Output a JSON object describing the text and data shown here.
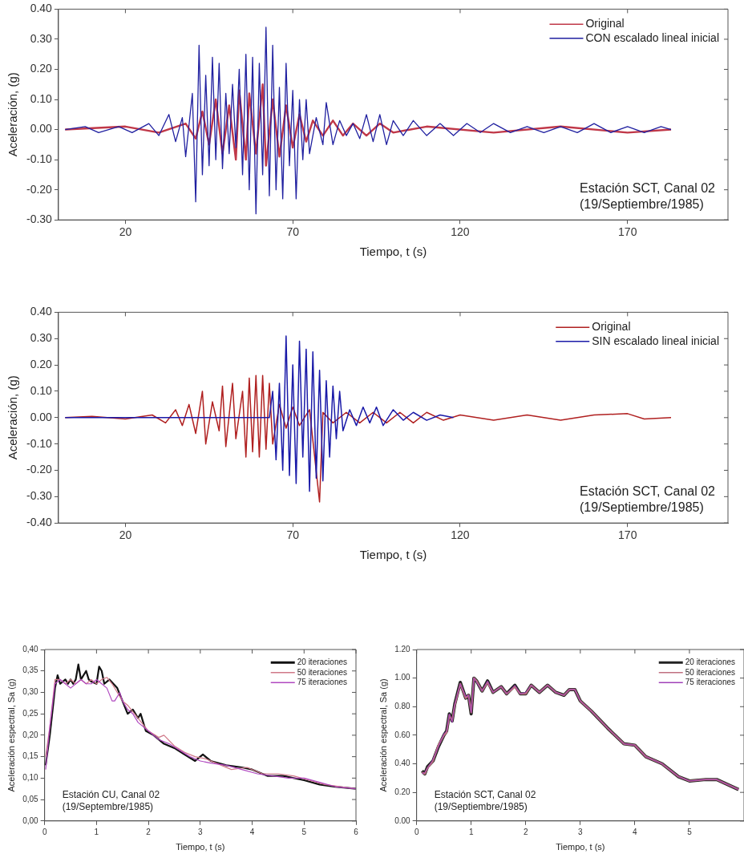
{
  "chart_data": [
    {
      "type": "line",
      "xlabel": "Tiempo, t (s)",
      "ylabel": "Aceleración, (g)",
      "xlim": [
        0,
        200
      ],
      "xticks": [
        20,
        70,
        120,
        170
      ],
      "ylim": [
        -0.3,
        0.4
      ],
      "yticks": [
        {
          "value": -0.3,
          "label": "-0.30"
        },
        {
          "value": -0.2,
          "label": "-0.20"
        },
        {
          "value": -0.1,
          "label": "-0.10"
        },
        {
          "value": 0,
          "label": "0.00"
        },
        {
          "value": 0.1,
          "label": "0.10"
        },
        {
          "value": 0.2,
          "label": "0.20"
        },
        {
          "value": 0.3,
          "label": "0.30"
        },
        {
          "value": 0.4,
          "label": "0.40"
        }
      ],
      "legend": "top right",
      "annotations": [
        "Estación SCT, Canal 02",
        "(19/Septiembre/1985)"
      ],
      "series": [
        {
          "name": "Original",
          "color": "#c03848",
          "x": [
            2,
            20,
            30,
            38,
            41,
            43,
            45,
            47,
            49,
            51,
            53,
            54,
            56,
            57,
            59,
            61,
            62,
            64,
            66,
            68,
            70,
            72,
            74,
            76,
            79,
            82,
            85,
            88,
            92,
            96,
            100,
            110,
            130,
            150,
            170,
            183
          ],
          "values": [
            0,
            0.01,
            -0.01,
            0.02,
            -0.03,
            0.06,
            -0.05,
            0.1,
            -0.08,
            0.08,
            -0.1,
            0.13,
            -0.1,
            0.12,
            -0.08,
            0.15,
            -0.12,
            0.1,
            -0.09,
            0.08,
            -0.06,
            0.05,
            -0.04,
            0.03,
            -0.02,
            0.03,
            -0.02,
            0.02,
            -0.02,
            0.02,
            -0.01,
            0.01,
            -0.01,
            0.01,
            -0.01,
            0
          ]
        },
        {
          "name": "CON escalado lineal inicial",
          "color": "#2020a0",
          "x": [
            2,
            8,
            12,
            18,
            22,
            27,
            30,
            33,
            35,
            37,
            38,
            40,
            41,
            42,
            43,
            44,
            45,
            46,
            47,
            48,
            49,
            50,
            51,
            52,
            53,
            54,
            55,
            56,
            57,
            58,
            59,
            60,
            61,
            62,
            63,
            64,
            65,
            66,
            67,
            68,
            69,
            70,
            71,
            72,
            73,
            74,
            75,
            77,
            79,
            80,
            82,
            84,
            86,
            88,
            90,
            92,
            94,
            96,
            98,
            100,
            103,
            106,
            110,
            114,
            118,
            122,
            126,
            130,
            135,
            140,
            145,
            150,
            155,
            160,
            165,
            170,
            175,
            180,
            183
          ],
          "values": [
            0,
            0.01,
            -0.01,
            0.01,
            -0.01,
            0.02,
            -0.02,
            0.05,
            -0.04,
            0.04,
            -0.09,
            0.12,
            -0.24,
            0.28,
            -0.15,
            0.18,
            -0.12,
            0.24,
            -0.1,
            0.22,
            -0.13,
            0.12,
            -0.08,
            0.15,
            -0.06,
            0.2,
            -0.15,
            0.25,
            -0.2,
            0.24,
            -0.28,
            0.22,
            -0.15,
            0.34,
            -0.22,
            0.28,
            -0.2,
            0.14,
            -0.23,
            0.22,
            -0.12,
            0.13,
            -0.23,
            0.1,
            -0.1,
            0.1,
            -0.08,
            0.04,
            -0.05,
            0.09,
            -0.05,
            0.03,
            -0.02,
            0.02,
            -0.03,
            0.05,
            -0.04,
            0.05,
            -0.05,
            0.03,
            -0.02,
            0.03,
            -0.02,
            0.02,
            -0.02,
            0.02,
            -0.01,
            0.02,
            -0.01,
            0.01,
            -0.01,
            0.01,
            -0.01,
            0.02,
            -0.01,
            0.01,
            -0.01,
            0.01,
            0
          ]
        }
      ]
    },
    {
      "type": "line",
      "xlabel": "Tiempo, t (s)",
      "ylabel": "Aceleración, (g)",
      "xlim": [
        0,
        200
      ],
      "xticks": [
        20,
        70,
        120,
        170
      ],
      "ylim": [
        -0.4,
        0.4
      ],
      "yticks": [
        {
          "value": -0.4,
          "label": "-0.40"
        },
        {
          "value": -0.3,
          "label": "-0.30"
        },
        {
          "value": -0.2,
          "label": "-0.20"
        },
        {
          "value": -0.1,
          "label": "-0.10"
        },
        {
          "value": 0,
          "label": "0.00"
        },
        {
          "value": 0.1,
          "label": "0.10"
        },
        {
          "value": 0.2,
          "label": "0.20"
        },
        {
          "value": 0.3,
          "label": "0.30"
        },
        {
          "value": 0.4,
          "label": "0.40"
        }
      ],
      "legend": "top right",
      "annotations": [
        "Estación SCT, Canal 02",
        "(19/Septiembre/1985)"
      ],
      "series": [
        {
          "name": "Original",
          "color": "#b02020",
          "x": [
            2,
            10,
            20,
            28,
            32,
            35,
            37,
            39,
            41,
            43,
            44,
            46,
            48,
            49,
            50,
            52,
            53,
            55,
            56,
            57,
            58,
            59,
            60,
            61,
            62,
            63,
            64,
            66,
            68,
            70,
            72,
            75,
            78,
            79,
            82,
            86,
            90,
            94,
            98,
            102,
            106,
            110,
            115,
            120,
            130,
            140,
            150,
            160,
            170,
            175,
            183
          ],
          "values": [
            0,
            0.005,
            -0.005,
            0.01,
            -0.02,
            0.03,
            -0.03,
            0.05,
            -0.06,
            0.1,
            -0.1,
            0.06,
            -0.05,
            0.12,
            -0.11,
            0.13,
            -0.08,
            0.1,
            -0.15,
            0.15,
            -0.13,
            0.16,
            -0.15,
            0.16,
            -0.12,
            0.13,
            -0.1,
            0.05,
            -0.04,
            0.04,
            -0.03,
            0.03,
            -0.32,
            0.02,
            -0.02,
            0.02,
            -0.02,
            0.02,
            -0.02,
            0.02,
            -0.02,
            0.02,
            -0.01,
            0.01,
            -0.01,
            0.01,
            -0.01,
            0.01,
            0.015,
            -0.005,
            0
          ]
        },
        {
          "name": "SIN escalado lineal inicial",
          "color": "#1a1aa8",
          "x": [
            2,
            63,
            64,
            65,
            66,
            67,
            68,
            69,
            70,
            71,
            72,
            73,
            74,
            75,
            76,
            77,
            78,
            79,
            80,
            81,
            82,
            83,
            84,
            85,
            87,
            89,
            91,
            93,
            95,
            97,
            100,
            103,
            106,
            110,
            114,
            118
          ],
          "values": [
            0,
            0,
            0.1,
            -0.16,
            0.13,
            -0.2,
            0.31,
            -0.22,
            0.2,
            -0.25,
            0.29,
            -0.15,
            0.26,
            -0.28,
            0.25,
            -0.23,
            0.18,
            -0.24,
            0.14,
            -0.15,
            0.12,
            -0.08,
            0.1,
            -0.05,
            0.03,
            -0.03,
            0.04,
            -0.02,
            0.04,
            -0.03,
            0.03,
            -0.01,
            0.02,
            -0.01,
            0.01,
            0
          ]
        }
      ]
    },
    {
      "type": "line",
      "xlabel": "Tiempo, t (s)",
      "ylabel": "Aceleración espectral, Sa (g)",
      "xlim": [
        0,
        6
      ],
      "xticks": [
        0,
        1,
        2,
        3,
        4,
        5,
        6
      ],
      "ylim": [
        0,
        0.4
      ],
      "yticks": [
        {
          "value": 0,
          "label": "0,00"
        },
        {
          "value": 0.05,
          "label": "0,05"
        },
        {
          "value": 0.1,
          "label": "0,10"
        },
        {
          "value": 0.15,
          "label": "0,15"
        },
        {
          "value": 0.2,
          "label": "0,20"
        },
        {
          "value": 0.25,
          "label": "0,25"
        },
        {
          "value": 0.3,
          "label": "0,30"
        },
        {
          "value": 0.35,
          "label": "0,35"
        },
        {
          "value": 0.4,
          "label": "0,40"
        }
      ],
      "legend": "top right",
      "annotations": [
        "Estación CU, Canal 02",
        "(19/Septembre/1985)"
      ],
      "series": [
        {
          "name": "20 iteraciones",
          "color": "#111111",
          "x": [
            0.02,
            0.1,
            0.2,
            0.25,
            0.3,
            0.4,
            0.45,
            0.5,
            0.55,
            0.6,
            0.65,
            0.7,
            0.8,
            0.85,
            0.9,
            1.0,
            1.05,
            1.1,
            1.15,
            1.25,
            1.4,
            1.5,
            1.6,
            1.7,
            1.8,
            1.85,
            1.95,
            2.1,
            2.3,
            2.5,
            2.7,
            2.9,
            3.05,
            3.2,
            3.5,
            3.8,
            4.0,
            4.3,
            4.6,
            5.0,
            5.3,
            5.6,
            6.0
          ],
          "values": [
            0.13,
            0.2,
            0.31,
            0.34,
            0.32,
            0.33,
            0.32,
            0.33,
            0.32,
            0.33,
            0.365,
            0.33,
            0.35,
            0.33,
            0.325,
            0.32,
            0.36,
            0.35,
            0.32,
            0.33,
            0.31,
            0.28,
            0.25,
            0.26,
            0.24,
            0.25,
            0.21,
            0.2,
            0.18,
            0.17,
            0.155,
            0.14,
            0.155,
            0.14,
            0.13,
            0.125,
            0.12,
            0.105,
            0.105,
            0.095,
            0.085,
            0.08,
            0.075
          ]
        },
        {
          "name": "50 iteraciones",
          "color": "#d07888",
          "x": [
            0.02,
            0.1,
            0.2,
            0.3,
            0.4,
            0.5,
            0.6,
            0.7,
            0.8,
            0.9,
            1.0,
            1.1,
            1.2,
            1.3,
            1.4,
            1.5,
            1.6,
            1.7,
            1.8,
            2.0,
            2.2,
            2.3,
            2.5,
            2.7,
            2.9,
            3.1,
            3.3,
            3.6,
            3.9,
            4.2,
            4.5,
            4.8,
            5.1,
            5.4,
            5.7,
            6.0
          ],
          "values": [
            0.15,
            0.22,
            0.33,
            0.33,
            0.32,
            0.33,
            0.32,
            0.33,
            0.32,
            0.33,
            0.32,
            0.33,
            0.335,
            0.32,
            0.3,
            0.28,
            0.27,
            0.255,
            0.24,
            0.21,
            0.195,
            0.2,
            0.175,
            0.16,
            0.15,
            0.145,
            0.135,
            0.12,
            0.125,
            0.11,
            0.11,
            0.105,
            0.095,
            0.085,
            0.08,
            0.075
          ]
        },
        {
          "name": "75 iteraciones",
          "color": "#b048c0",
          "x": [
            0.02,
            0.1,
            0.2,
            0.3,
            0.4,
            0.5,
            0.6,
            0.7,
            0.8,
            0.9,
            1.0,
            1.1,
            1.2,
            1.3,
            1.35,
            1.45,
            1.5,
            1.6,
            1.7,
            1.8,
            2.0,
            2.2,
            2.4,
            2.6,
            2.8,
            3.0,
            3.2,
            3.5,
            3.8,
            4.1,
            4.4,
            4.7,
            5.0,
            5.3,
            5.6,
            6.0
          ],
          "values": [
            0.12,
            0.22,
            0.32,
            0.33,
            0.32,
            0.31,
            0.32,
            0.33,
            0.32,
            0.32,
            0.33,
            0.32,
            0.31,
            0.28,
            0.28,
            0.3,
            0.28,
            0.26,
            0.25,
            0.23,
            0.21,
            0.19,
            0.18,
            0.165,
            0.15,
            0.14,
            0.135,
            0.13,
            0.12,
            0.11,
            0.105,
            0.1,
            0.1,
            0.09,
            0.08,
            0.075
          ]
        }
      ]
    },
    {
      "type": "line",
      "xlabel": "Tiempo, t (s)",
      "ylabel": "Aceleración espectral, Sa (g)",
      "xlim": [
        0,
        6
      ],
      "xticks": [
        0,
        1,
        2,
        3,
        4,
        5
      ],
      "ylim": [
        0,
        1.2
      ],
      "yticks": [
        {
          "value": 0,
          "label": "0.00"
        },
        {
          "value": 0.2,
          "label": "0.20"
        },
        {
          "value": 0.4,
          "label": "0.40"
        },
        {
          "value": 0.6,
          "label": "0.60"
        },
        {
          "value": 0.8,
          "label": "0.80"
        },
        {
          "value": 1,
          "label": "1.00"
        },
        {
          "value": 1.2,
          "label": "1.20"
        }
      ],
      "legend": "top right",
      "annotations": [
        "Estación SCT, Canal 02",
        "(19/Septiembre/1985)"
      ],
      "series": [
        {
          "name": "20 iteraciones",
          "color": "#222222",
          "x": [
            0.1,
            0.15,
            0.2,
            0.3,
            0.4,
            0.5,
            0.55,
            0.6,
            0.65,
            0.7,
            0.8,
            0.9,
            0.95,
            1.0,
            1.05,
            1.1,
            1.2,
            1.3,
            1.4,
            1.55,
            1.65,
            1.8,
            1.9,
            2.0,
            2.1,
            2.25,
            2.4,
            2.55,
            2.7,
            2.8,
            2.9,
            3.0,
            3.2,
            3.5,
            3.8,
            4.0,
            4.2,
            4.5,
            4.8,
            5.0,
            5.3,
            5.5,
            5.9
          ],
          "values": [
            0.35,
            0.33,
            0.38,
            0.42,
            0.52,
            0.6,
            0.63,
            0.75,
            0.7,
            0.82,
            0.97,
            0.86,
            0.88,
            0.75,
            1.0,
            0.98,
            0.91,
            0.98,
            0.9,
            0.94,
            0.89,
            0.95,
            0.89,
            0.89,
            0.95,
            0.9,
            0.95,
            0.9,
            0.88,
            0.92,
            0.92,
            0.84,
            0.77,
            0.65,
            0.54,
            0.53,
            0.45,
            0.4,
            0.31,
            0.28,
            0.29,
            0.29,
            0.22
          ]
        },
        {
          "name": "50 iteraciones",
          "color": "#c07080",
          "x": [
            0.1,
            0.15,
            0.2,
            0.3,
            0.4,
            0.5,
            0.55,
            0.6,
            0.65,
            0.7,
            0.8,
            0.9,
            0.95,
            1.0,
            1.05,
            1.1,
            1.2,
            1.3,
            1.4,
            1.55,
            1.65,
            1.8,
            1.9,
            2.0,
            2.1,
            2.25,
            2.4,
            2.55,
            2.7,
            2.8,
            2.9,
            3.0,
            3.2,
            3.5,
            3.8,
            4.0,
            4.2,
            4.5,
            4.8,
            5.0,
            5.3,
            5.5,
            5.9
          ],
          "values": [
            0.34,
            0.33,
            0.37,
            0.42,
            0.53,
            0.6,
            0.62,
            0.74,
            0.7,
            0.81,
            0.96,
            0.86,
            0.88,
            0.76,
            1.0,
            0.98,
            0.91,
            0.97,
            0.9,
            0.94,
            0.89,
            0.94,
            0.89,
            0.89,
            0.95,
            0.9,
            0.95,
            0.9,
            0.88,
            0.92,
            0.92,
            0.84,
            0.77,
            0.65,
            0.54,
            0.53,
            0.45,
            0.4,
            0.31,
            0.28,
            0.29,
            0.29,
            0.22
          ]
        },
        {
          "name": "75 iteraciones",
          "color": "#a040b8",
          "x": [
            0.1,
            0.15,
            0.2,
            0.3,
            0.4,
            0.5,
            0.55,
            0.6,
            0.65,
            0.7,
            0.8,
            0.9,
            0.95,
            1.0,
            1.05,
            1.1,
            1.2,
            1.3,
            1.4,
            1.55,
            1.65,
            1.8,
            1.9,
            2.0,
            2.1,
            2.25,
            2.4,
            2.55,
            2.7,
            2.8,
            2.9,
            3.0,
            3.2,
            3.5,
            3.8,
            4.0,
            4.2,
            4.5,
            4.8,
            5.0,
            5.3,
            5.5,
            5.9
          ],
          "values": [
            0.33,
            0.34,
            0.37,
            0.43,
            0.52,
            0.61,
            0.63,
            0.75,
            0.69,
            0.82,
            0.96,
            0.87,
            0.88,
            0.76,
            1.0,
            0.97,
            0.91,
            0.98,
            0.9,
            0.94,
            0.89,
            0.95,
            0.89,
            0.9,
            0.95,
            0.9,
            0.95,
            0.9,
            0.88,
            0.92,
            0.92,
            0.84,
            0.77,
            0.65,
            0.54,
            0.53,
            0.45,
            0.4,
            0.31,
            0.28,
            0.29,
            0.29,
            0.22
          ]
        }
      ]
    }
  ]
}
